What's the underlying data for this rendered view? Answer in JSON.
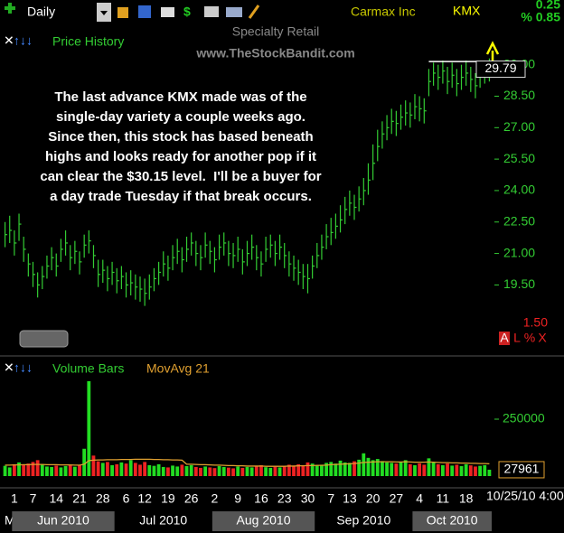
{
  "toolbar": {
    "interval": "Daily",
    "company": "Carmax Inc",
    "symbol": "KMX",
    "change": "0.25",
    "percent_change": "% 0.85",
    "side_value": "1.50",
    "side_buttons": [
      "A",
      "L",
      "%",
      "X"
    ]
  },
  "watermark": {
    "industry": "Specialty Retail",
    "site": "www.TheStockBandit.com"
  },
  "chart_data": [
    {
      "type": "ohlc",
      "title": "Price History",
      "color": "#33cc33",
      "annotation": [
        "The last advance KMX made was of the",
        "single-day variety a couple weeks ago.",
        "Since then, this stock has based beneath",
        "highs and looks ready for another pop if it",
        "can clear the $30.15 level.  I'll be a buyer for",
        "a day trade Tuesday if that break occurs."
      ],
      "resistance": 30.15,
      "high": [
        22.5,
        22.8,
        22.1,
        22.9,
        21.8,
        21.0,
        20.6,
        20.1,
        20.4,
        20.9,
        21.3,
        21.0,
        21.7,
        22.1,
        21.4,
        21.6,
        21.1,
        21.9,
        22.1,
        21.4,
        20.7,
        20.7,
        20.4,
        20.6,
        20.3,
        20.4,
        20.1,
        20.2,
        20.0,
        19.9,
        19.8,
        20.0,
        20.3,
        20.6,
        21.1,
        20.9,
        21.4,
        21.7,
        21.3,
        21.8,
        22.0,
        21.6,
        21.4,
        22.0,
        21.6,
        21.3,
        21.9,
        22.0,
        21.6,
        21.5,
        21.8,
        21.2,
        21.6,
        21.9,
        21.4,
        21.1,
        21.8,
        21.9,
        21.6,
        21.9,
        21.5,
        21.1,
        20.9,
        20.7,
        20.5,
        20.5,
        20.9,
        21.5,
        21.9,
        22.4,
        22.7,
        22.9,
        23.3,
        23.7,
        24.0,
        23.8,
        24.2,
        24.6,
        25.3,
        26.2,
        26.9,
        27.3,
        27.6,
        27.9,
        27.8,
        28.1,
        28.3,
        28.2,
        28.6,
        28.5,
        28.4,
        29.8,
        30.1,
        30.0,
        30.2,
        29.9,
        30.1,
        29.8,
        30.0,
        30.2,
        29.9,
        29.6,
        30.1,
        30.2,
        30.3
      ],
      "low": [
        21.3,
        21.5,
        20.9,
        21.6,
        20.6,
        19.9,
        19.4,
        18.9,
        19.3,
        19.8,
        20.2,
        19.9,
        20.6,
        20.9,
        20.2,
        20.5,
        20.0,
        20.8,
        21.0,
        20.3,
        19.4,
        19.6,
        19.2,
        19.5,
        19.1,
        19.3,
        18.9,
        19.0,
        18.8,
        18.7,
        18.5,
        18.8,
        19.2,
        19.5,
        19.9,
        19.7,
        20.2,
        20.5,
        20.1,
        20.6,
        20.9,
        20.4,
        20.2,
        20.8,
        20.5,
        20.1,
        20.7,
        20.9,
        20.4,
        20.3,
        20.6,
        20.0,
        20.4,
        20.7,
        20.2,
        19.9,
        20.6,
        20.8,
        20.4,
        20.7,
        20.3,
        19.9,
        19.7,
        19.5,
        19.3,
        19.1,
        19.8,
        20.3,
        20.7,
        21.2,
        21.4,
        21.7,
        22.0,
        22.4,
        22.8,
        22.6,
        23.0,
        23.3,
        23.8,
        24.5,
        25.4,
        26.0,
        26.4,
        26.7,
        26.6,
        26.9,
        27.1,
        27.0,
        27.4,
        27.3,
        27.2,
        28.5,
        29.0,
        28.8,
        29.1,
        28.6,
        28.9,
        28.5,
        28.8,
        29.0,
        28.7,
        28.4,
        28.9,
        29.1,
        29.2
      ],
      "close": [
        21.9,
        22.1,
        21.5,
        22.4,
        21.2,
        20.5,
        20.0,
        19.5,
        19.9,
        20.4,
        20.8,
        20.4,
        21.2,
        21.5,
        20.8,
        21.1,
        20.6,
        21.4,
        21.6,
        20.9,
        20.0,
        20.2,
        19.8,
        20.1,
        19.7,
        19.9,
        19.5,
        19.6,
        19.4,
        19.3,
        19.1,
        19.4,
        19.8,
        20.1,
        20.5,
        20.3,
        20.8,
        21.1,
        20.7,
        21.2,
        21.5,
        21.0,
        20.8,
        21.4,
        21.1,
        20.7,
        21.3,
        21.5,
        21.0,
        20.9,
        21.2,
        20.6,
        21.0,
        21.3,
        20.8,
        20.5,
        21.2,
        21.4,
        21.0,
        21.3,
        20.9,
        20.5,
        20.3,
        20.1,
        19.9,
        19.8,
        20.4,
        20.9,
        21.3,
        21.8,
        22.0,
        22.3,
        22.6,
        23.1,
        23.4,
        23.2,
        23.6,
        24.0,
        24.5,
        25.3,
        26.1,
        26.7,
        27.0,
        27.3,
        27.2,
        27.5,
        27.7,
        27.6,
        28.0,
        27.9,
        27.8,
        29.2,
        29.6,
        29.4,
        29.7,
        29.2,
        29.5,
        29.1,
        29.4,
        29.6,
        29.3,
        29.0,
        29.5,
        29.7,
        29.79
      ],
      "xlim": [
        0,
        105
      ],
      "ylim": [
        16.2,
        31.45
      ],
      "yticks": [
        {
          "value": 19.5,
          "label": "19.50"
        },
        {
          "value": 21,
          "label": "21.00"
        },
        {
          "value": 22.5,
          "label": "22.50"
        },
        {
          "value": 24,
          "label": "24.00"
        },
        {
          "value": 25.5,
          "label": "25.50"
        },
        {
          "value": 27,
          "label": "27.00"
        },
        {
          "value": 28.5,
          "label": "28.50"
        },
        {
          "value": 30,
          "label": "30.00"
        }
      ]
    },
    {
      "type": "volume",
      "title": "Volume Bars",
      "ma_title": "MovAvg 21",
      "up_color": "#22dd22",
      "down_color": "#ee2222",
      "ma_color": "#e0a030",
      "values": [
        45000,
        38000,
        52000,
        60000,
        48000,
        55000,
        62000,
        70000,
        50000,
        42000,
        40000,
        46000,
        38000,
        44000,
        50000,
        41000,
        47000,
        120000,
        417000,
        90000,
        65000,
        58000,
        62000,
        48000,
        52000,
        60000,
        55000,
        70000,
        58000,
        50000,
        62000,
        48000,
        45000,
        52000,
        40000,
        38000,
        46000,
        42000,
        50000,
        44000,
        48000,
        40000,
        36000,
        42000,
        38000,
        35000,
        44000,
        40000,
        37000,
        34000,
        42000,
        36000,
        40000,
        38000,
        45000,
        48000,
        39000,
        36000,
        41000,
        38000,
        44000,
        50000,
        46000,
        52000,
        48000,
        60000,
        55000,
        47000,
        50000,
        58000,
        62000,
        55000,
        68000,
        60000,
        58000,
        65000,
        72000,
        100000,
        80000,
        70000,
        75000,
        66000,
        60000,
        58000,
        55000,
        62000,
        70000,
        52000,
        48000,
        56000,
        50000,
        78000,
        60000,
        52000,
        48000,
        55000,
        46000,
        50000,
        44000,
        52000,
        47000,
        42000,
        45000,
        48000,
        27961
      ],
      "ma": [
        48000,
        48000,
        49000,
        49000,
        50000,
        50000,
        51000,
        51000,
        51000,
        50000,
        50000,
        50000,
        49000,
        49000,
        49000,
        48000,
        48000,
        52000,
        68000,
        70000,
        71000,
        71000,
        72000,
        72000,
        72000,
        73000,
        73000,
        73000,
        74000,
        74000,
        74000,
        74000,
        73000,
        73000,
        72000,
        72000,
        71000,
        71000,
        70000,
        52000,
        52000,
        51000,
        50000,
        50000,
        49000,
        48000,
        48000,
        47000,
        46000,
        46000,
        45000,
        45000,
        44000,
        44000,
        44000,
        44000,
        43000,
        43000,
        43000,
        43000,
        43000,
        44000,
        44000,
        45000,
        45000,
        46000,
        46000,
        47000,
        47000,
        48000,
        50000,
        51000,
        52000,
        53000,
        54000,
        55000,
        57000,
        60000,
        61000,
        62000,
        63000,
        63000,
        63000,
        63000,
        62000,
        62000,
        63000,
        62000,
        61000,
        61000,
        61000,
        62000,
        61000,
        60000,
        59000,
        59000,
        58000,
        58000,
        57000,
        57000,
        56000,
        56000,
        55000,
        55000,
        54000
      ],
      "xlim": [
        0,
        105
      ],
      "ylim": [
        0,
        504000
      ],
      "yticks": [
        250000
      ],
      "xticks": [
        {
          "value": 2,
          "label": "1"
        },
        {
          "value": 6,
          "label": "7"
        },
        {
          "value": 11,
          "label": "14"
        },
        {
          "value": 16,
          "label": "21"
        },
        {
          "value": 21,
          "label": "28"
        },
        {
          "value": 26,
          "label": "6"
        },
        {
          "value": 30,
          "label": "12"
        },
        {
          "value": 35,
          "label": "19"
        },
        {
          "value": 40,
          "label": "26"
        },
        {
          "value": 45,
          "label": "2"
        },
        {
          "value": 50,
          "label": "9"
        },
        {
          "value": 55,
          "label": "16"
        },
        {
          "value": 60,
          "label": "23"
        },
        {
          "value": 65,
          "label": "30"
        },
        {
          "value": 70,
          "label": "7"
        },
        {
          "value": 74,
          "label": "13"
        },
        {
          "value": 79,
          "label": "20"
        },
        {
          "value": 84,
          "label": "27"
        },
        {
          "value": 89,
          "label": "4"
        },
        {
          "value": 94,
          "label": "11"
        },
        {
          "value": 99,
          "label": "18"
        }
      ],
      "date_label": "10/25/10 4:00",
      "months": [
        {
          "value": 0,
          "label": "M"
        },
        {
          "value": 2,
          "label": "Jun 2010"
        },
        {
          "value": 24,
          "label": "Jul 2010"
        },
        {
          "value": 45,
          "label": "Aug 2010"
        },
        {
          "value": 67,
          "label": "Sep 2010"
        },
        {
          "value": 88,
          "label": "Oct 2010"
        }
      ]
    }
  ]
}
